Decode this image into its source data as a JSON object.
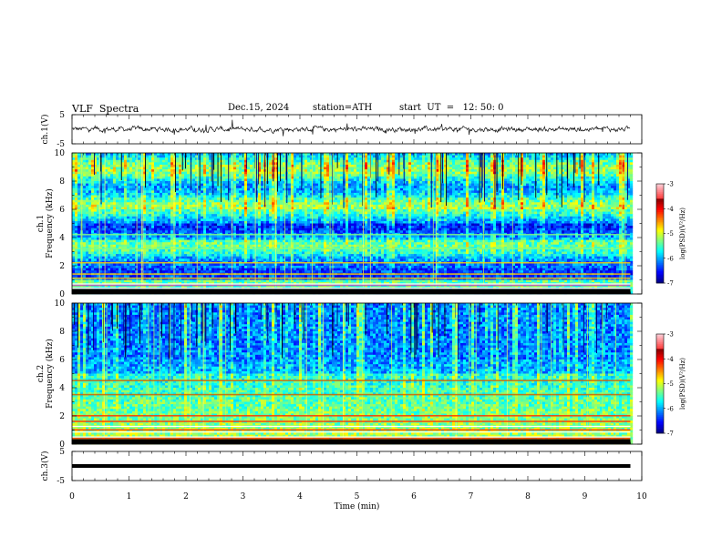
{
  "header": {
    "title": "VLF  Spectra",
    "date": "Dec.15, 2024",
    "station": "station=ATH",
    "start_ut": "start  UT  =   12: 50: 0"
  },
  "chart_data": [
    {
      "type": "line",
      "name": "ch1-waveform",
      "ylabel": "ch.1(V)",
      "ylim": [
        -5,
        5
      ],
      "yticks": [
        "5",
        "-5"
      ],
      "xlim": [
        0,
        10
      ]
    },
    {
      "type": "heatmap",
      "name": "ch1-spectrogram",
      "ylabel_channel": "ch.1",
      "ylabel": "Frequency  (kHz)",
      "ylim": [
        0,
        10
      ],
      "yticks": [
        "10",
        "8",
        "6",
        "4",
        "2",
        "0"
      ],
      "xlim": [
        0,
        10
      ],
      "colorbar": {
        "label": "log(PSD)(V²/Hz)",
        "range": [
          -7,
          -3
        ],
        "ticks": [
          "-3",
          "-4",
          "-5",
          "-6",
          "-7"
        ]
      },
      "bands_khz": [
        0.3,
        0.6,
        1.1,
        1.4,
        2.2,
        3.2,
        4.2
      ]
    },
    {
      "type": "heatmap",
      "name": "ch2-spectrogram",
      "ylabel_channel": "ch.2",
      "ylabel": "Frequency  (kHz)",
      "ylim": [
        0,
        10
      ],
      "yticks": [
        "10",
        "8",
        "6",
        "4",
        "2",
        "0"
      ],
      "xlim": [
        0,
        10
      ],
      "colorbar": {
        "label": "log(PSD)(V²/Hz)",
        "range": [
          -7,
          -3
        ],
        "ticks": [
          "-3",
          "-4",
          "-5",
          "-6",
          "-7"
        ]
      },
      "bands_khz": [
        0.4,
        1.0,
        1.6,
        2.0,
        3.5,
        4.5
      ]
    },
    {
      "type": "line",
      "name": "ch3-waveform",
      "ylabel": "ch.3(V)",
      "ylim": [
        -5,
        5
      ],
      "yticks": [
        "5",
        "-5"
      ],
      "xlim": [
        0,
        10
      ],
      "xlabel": "Time  (min)",
      "xticks": [
        "0",
        "1",
        "2",
        "3",
        "4",
        "5",
        "6",
        "7",
        "8",
        "9",
        "10"
      ]
    }
  ],
  "colors": {
    "black": "#000000",
    "trace": "#111111"
  }
}
